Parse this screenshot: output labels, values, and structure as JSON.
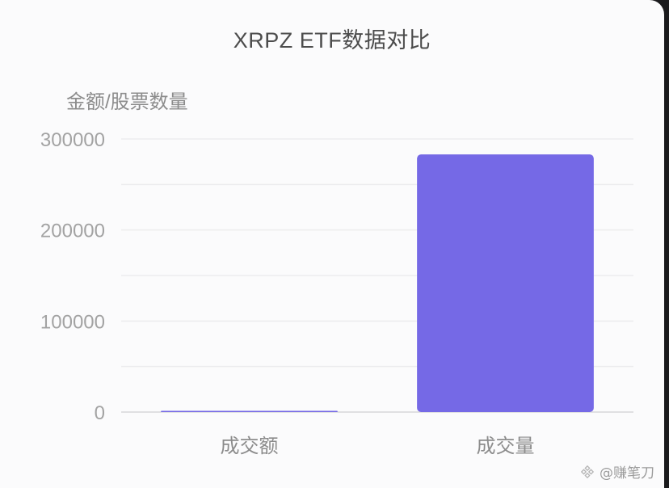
{
  "chart_data": {
    "type": "bar",
    "title": "XRPZ ETF数据对比",
    "ylabel": "金额/股票数量",
    "xlabel": "",
    "categories": [
      "成交额",
      "成交量"
    ],
    "values": [
      1200,
      283000
    ],
    "ylim": [
      0,
      300000
    ],
    "yticks": [
      0,
      100000,
      200000,
      300000
    ],
    "ytick_labels": [
      "0",
      "100000",
      "200000",
      "300000"
    ],
    "grid": true,
    "legend": "none",
    "colors": {
      "bar": "#7569e6",
      "grid": "#ececee",
      "axis": "#d7d7da",
      "tick_text": "#a3a3a3",
      "category_text": "#8c8c8c"
    }
  },
  "watermark": {
    "text": "@赚笔刀",
    "icon": "binance-square-logo-icon"
  }
}
